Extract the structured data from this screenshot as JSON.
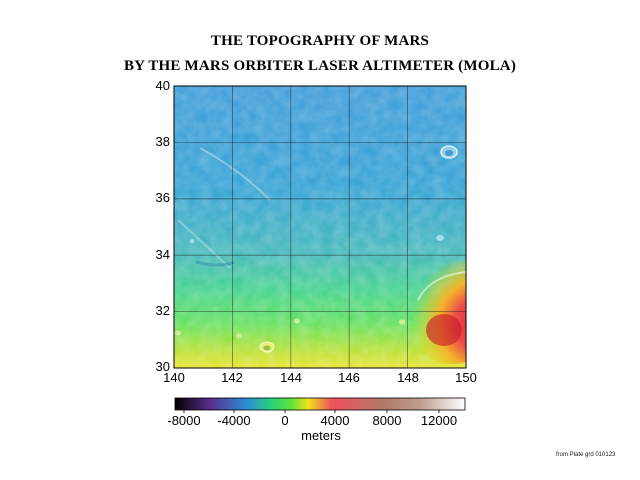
{
  "title_line1": "THE TOPOGRAPHY OF MARS",
  "title_line2": "BY THE MARS ORBITER LASER ALTIMETER (MOLA)",
  "map": {
    "y_ticks": [
      "40",
      "38",
      "36",
      "34",
      "32",
      "30"
    ],
    "x_ticks": [
      "140",
      "142",
      "144",
      "146",
      "148",
      "150"
    ],
    "lat_range": [
      30,
      40
    ],
    "lon_range": [
      140,
      150
    ],
    "grid": true
  },
  "colorbar": {
    "tick_labels": [
      "-8000",
      "-4000",
      "0",
      "4000",
      "8000",
      "12000"
    ],
    "unit": "meters",
    "colors": [
      "#000000",
      "#5a2d8c",
      "#2b8fd6",
      "#25d27a",
      "#5ee238",
      "#f2e21a",
      "#f05060",
      "#c09070",
      "#ffffff"
    ]
  },
  "credit": "from Plate grd 010123"
}
